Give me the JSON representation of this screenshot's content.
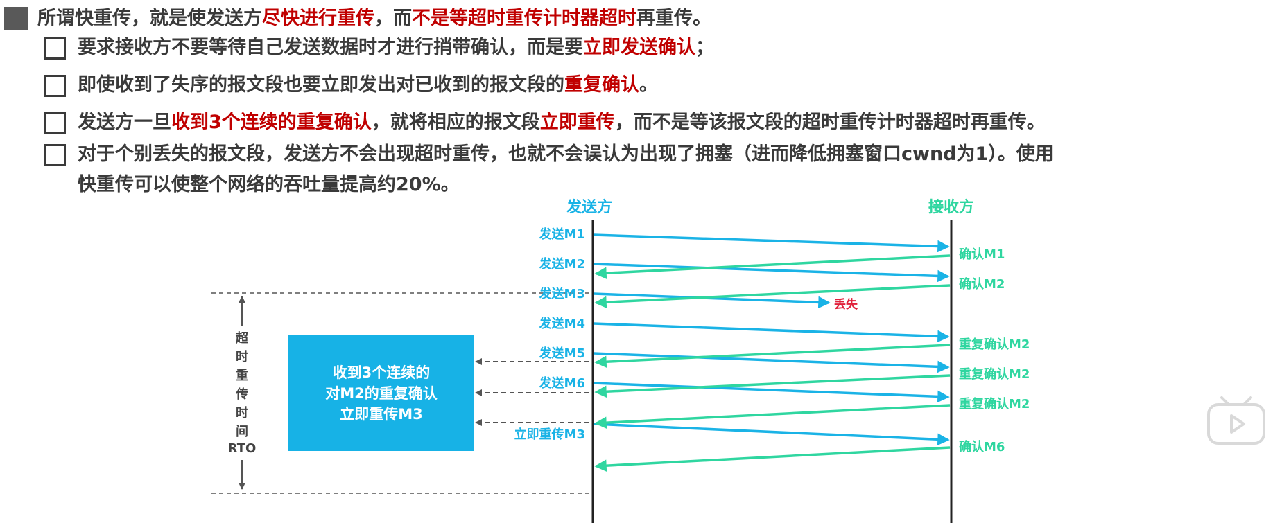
{
  "bullet_main": {
    "text_a": "所谓快重传，就是使发送方",
    "hl_a": "尽快进行重传",
    "text_b": "，而",
    "hl_b": "不是等超时重传计时器超时",
    "text_c": "再重传。"
  },
  "sub1": {
    "text_a": "要求接收方不要等待自己发送数据时才进行捎带确认，而是要",
    "hl_a": "立即发送确认",
    "text_b": "；"
  },
  "sub2": {
    "text_a": "即使收到了失序的报文段也要立即发出对已收到的报文段的",
    "hl_a": "重复确认",
    "text_b": "。"
  },
  "sub3": {
    "text_a": "发送方一旦",
    "hl_a": "收到3个连续的重复确认",
    "text_b": "，就将相应的报文段",
    "hl_b": "立即重传",
    "text_c": "，而不是等该报文段的超时重传计时器超时再重传。"
  },
  "sub4": {
    "line1": "对于个别丢失的报文段，发送方不会出现超时重传，也就不会误认为出现了拥塞（进而降低拥塞窗口cwnd为1）。使用",
    "line2": "快重传可以使整个网络的吞吐量提高约20%。"
  },
  "diagram": {
    "sender_label": "发送方",
    "receiver_label": "接收方",
    "send_labels": [
      "发送M1",
      "发送M2",
      "发送M3",
      "发送M4",
      "发送M5",
      "发送M6",
      "立即重传M3"
    ],
    "ack_labels": [
      "确认M1",
      "确认M2",
      "重复确认M2",
      "重复确认M2",
      "重复确认M2",
      "确认M6"
    ],
    "lost_label": "丢失",
    "rto_chars": [
      "超",
      "时",
      "重",
      "传",
      "时",
      "间",
      "RTO"
    ],
    "callout_lines": [
      "收到3个连续的",
      "对M2的重复确认",
      "立即重传M3"
    ],
    "colors": {
      "send": "#1ab3e6",
      "ack": "#2fd6a0",
      "lost": "#e0203a",
      "callout": "#17b2e6"
    }
  }
}
